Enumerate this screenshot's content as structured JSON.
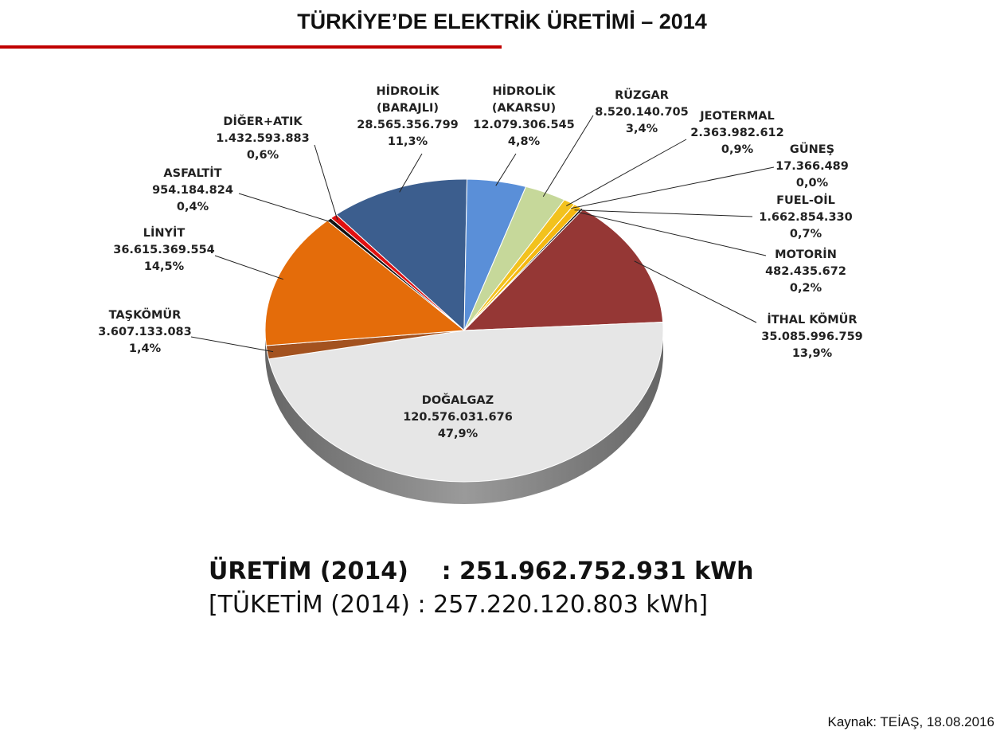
{
  "chart_data": {
    "type": "pie",
    "title": "TÜRKİYE’DE ELEKTRİK ÜRETİMİ – 2014",
    "categories": [
      "HİDROLİK\n(BARAJLI)",
      "HİDROLİK\n(AKARSU)",
      "RÜZGAR",
      "JEOTERMAL",
      "GÜNEŞ",
      "FUEL-OİL",
      "MOTORİN",
      "İTHAL KÖMÜR",
      "DOĞALGAZ",
      "TAŞKÖMÜR",
      "LİNYİT",
      "ASFALTİT",
      "DİĞER+ATIK"
    ],
    "values": [
      28565356799,
      12079306545,
      8520140705,
      2363982612,
      17366489,
      1662854330,
      482435672,
      35085996759,
      120576031676,
      3607133083,
      36615369554,
      954184824,
      1432593883
    ],
    "value_labels": [
      "28.565.356.799",
      "12.079.306.545",
      "8.520.140.705",
      "2.363.982.612",
      "17.366.489",
      "1.662.854.330",
      "482.435.672",
      "35.085.996.759",
      "120.576.031.676",
      "3.607.133.083",
      "36.615.369.554",
      "954.184.824",
      "1.432.593.883"
    ],
    "percent_labels": [
      "11,3%",
      "4,8%",
      "3,4%",
      "0,9%",
      "0,0%",
      "0,7%",
      "0,2%",
      "13,9%",
      "47,9%",
      "1,4%",
      "14,5%",
      "0,4%",
      "0,6%"
    ],
    "colors": [
      "#3c5e8e",
      "#5a8fd8",
      "#c6d89a",
      "#f2c21e",
      "#ffee00",
      "#f5b810",
      "#1a1a1a",
      "#953735",
      "#e6e6e6",
      "#a3521f",
      "#e46c0a",
      "#111111",
      "#e01010"
    ],
    "summary": [
      "ÜRETİM (2014)    : 251.962.752.931 kWh",
      "[TÜKETİM (2014) : 257.220.120.803 kWh]"
    ],
    "source": "Kaynak: TEİAŞ, 18.08.2016"
  }
}
